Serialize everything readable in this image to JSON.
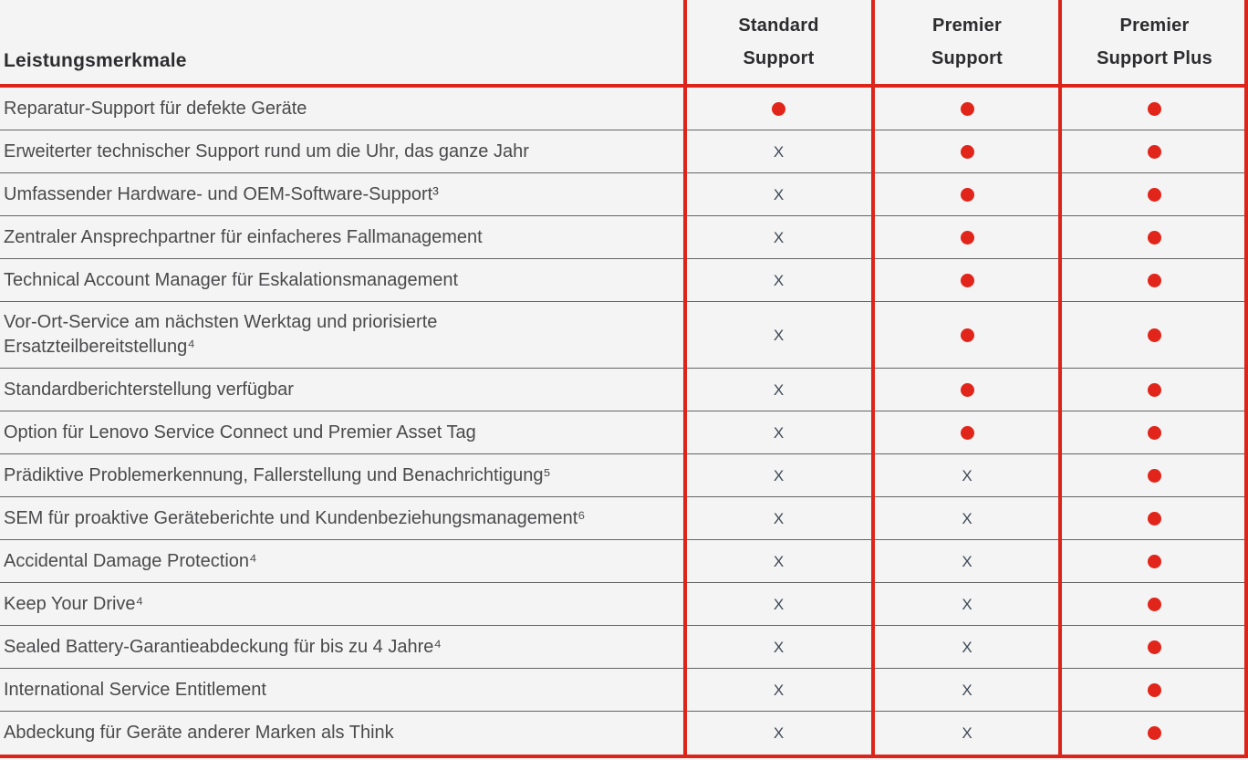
{
  "colors": {
    "accent_red": "#dd241b",
    "dot_red": "#e1251b",
    "background": "#f5f4f4",
    "header_text": "#2d2d30",
    "row_text": "#4a4a4c",
    "x_mark": "#3e4a57",
    "separator": "#646464"
  },
  "table": {
    "feature_column_header": "Leistungsmerkmale",
    "plan_headers": [
      {
        "key": "standard",
        "label": "Standard\nSupport"
      },
      {
        "key": "premier",
        "label": "Premier\nSupport"
      },
      {
        "key": "premier_plus",
        "label": "Premier\nSupport Plus"
      }
    ],
    "marks": {
      "included": "dot",
      "not_included": "X"
    },
    "rows": [
      {
        "feature": "Reparatur-Support für defekte Geräte",
        "values": [
          "included",
          "included",
          "included"
        ]
      },
      {
        "feature": "Erweiterter technischer Support rund um die Uhr, das ganze Jahr",
        "values": [
          "not_included",
          "included",
          "included"
        ]
      },
      {
        "feature": "Umfassender Hardware- und OEM-Software-Support³",
        "values": [
          "not_included",
          "included",
          "included"
        ]
      },
      {
        "feature": "Zentraler Ansprechpartner für einfacheres Fallmanagement",
        "values": [
          "not_included",
          "included",
          "included"
        ]
      },
      {
        "feature": "Technical Account Manager für Eskalationsmanagement",
        "values": [
          "not_included",
          "included",
          "included"
        ]
      },
      {
        "feature": "Vor-Ort-Service am nächsten Werktag und priorisierte\nErsatzteilbereitstellung⁴",
        "values": [
          "not_included",
          "included",
          "included"
        ]
      },
      {
        "feature": "Standardberichterstellung verfügbar",
        "values": [
          "not_included",
          "included",
          "included"
        ]
      },
      {
        "feature": "Option für Lenovo Service Connect und Premier Asset Tag",
        "values": [
          "not_included",
          "included",
          "included"
        ]
      },
      {
        "feature": "Prädiktive Problemerkennung, Fallerstellung und Benachrichtigung⁵",
        "values": [
          "not_included",
          "not_included",
          "included"
        ]
      },
      {
        "feature": "SEM für proaktive Geräteberichte und Kundenbeziehungsmanagement⁶",
        "values": [
          "not_included",
          "not_included",
          "included"
        ]
      },
      {
        "feature": "Accidental Damage Protection⁴",
        "values": [
          "not_included",
          "not_included",
          "included"
        ]
      },
      {
        "feature": "Keep Your Drive⁴",
        "values": [
          "not_included",
          "not_included",
          "included"
        ]
      },
      {
        "feature": "Sealed Battery-Garantieabdeckung für bis zu 4 Jahre⁴",
        "values": [
          "not_included",
          "not_included",
          "included"
        ]
      },
      {
        "feature": "International Service Entitlement",
        "values": [
          "not_included",
          "not_included",
          "included"
        ]
      },
      {
        "feature": "Abdeckung für Geräte anderer Marken als Think",
        "values": [
          "not_included",
          "not_included",
          "included"
        ]
      }
    ]
  }
}
